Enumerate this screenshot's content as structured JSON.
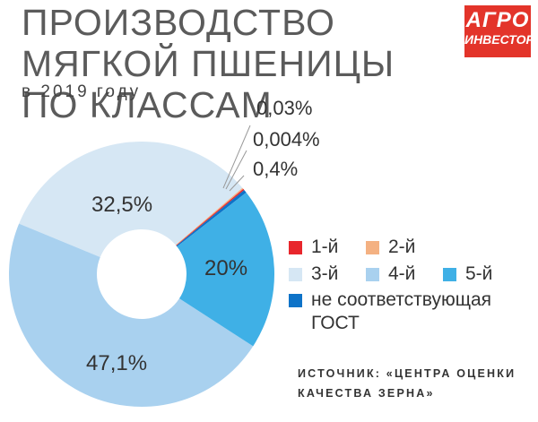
{
  "header": {
    "title": "ПРОИЗВОДСТВО МЯГКОЙ ПШЕНИЦЫ ПО КЛАССАМ",
    "subtitle": "в 2019 году"
  },
  "logo": {
    "line1": "АГРО",
    "line2": "ИНВЕСТОР"
  },
  "source": "ИСТОЧНИК: «ЦЕНТРА ОЦЕНКИ КАЧЕСТВА ЗЕРНА»",
  "chart_data": {
    "type": "pie",
    "donut": true,
    "title": "ПРОИЗВОДСТВО МЯГКОЙ ПШЕНИЦЫ ПО КЛАССАМ",
    "subtitle": "в 2019 году",
    "legend_position": "right",
    "categories": [
      "1-й",
      "2-й",
      "3-й",
      "4-й",
      "5-й",
      "не соответствующая ГОСТ"
    ],
    "values": [
      0.03,
      0.004,
      32.5,
      47.1,
      20,
      0.4
    ],
    "labels": [
      "0,03%",
      "0,004%",
      "32,5%",
      "47,1%",
      "20%",
      "0,4%"
    ],
    "colors": [
      "#e8262c",
      "#f4b182",
      "#d6e7f4",
      "#a9d1ef",
      "#3fb0e6",
      "#0e73c8"
    ]
  }
}
